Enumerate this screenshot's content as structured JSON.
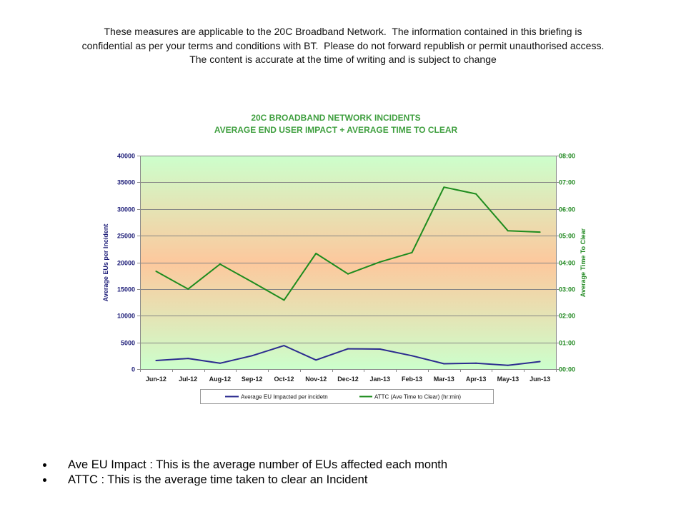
{
  "disclaimer": [
    "These measures are applicable to the 20C Broadband Network.  The information contained in this briefing is",
    "confidential as per your terms and conditions with BT.  Please do not forward republish or permit unauthorised access.",
    "The content is accurate at the time of writing and is subject to change"
  ],
  "notes": [
    "Ave EU Impact : This is the average number of EUs affected each month",
    "ATTC : This is the average time taken to clear an Incident"
  ],
  "chart_data": {
    "type": "line",
    "title": "20C BROADBAND NETWORK INCIDENTS",
    "subtitle": "AVERAGE END USER IMPACT + AVERAGE TIME TO CLEAR",
    "ylabel": "Average EUs per Incident",
    "y2label": "Average Time To Clear",
    "categories": [
      "Jun-12",
      "Jul-12",
      "Aug-12",
      "Sep-12",
      "Oct-12",
      "Nov-12",
      "Dec-12",
      "Jan-13",
      "Feb-13",
      "Mar-13",
      "Apr-13",
      "May-13",
      "Jun-13"
    ],
    "ylim": [
      0,
      40000
    ],
    "y_ticks": [
      0,
      5000,
      10000,
      15000,
      20000,
      25000,
      30000,
      35000,
      40000
    ],
    "y2lim": [
      "00:00",
      "08:00"
    ],
    "y2_ticks": [
      "00:00",
      "01:00",
      "02:00",
      "03:00",
      "04:00",
      "05:00",
      "06:00",
      "07:00",
      "08:00"
    ],
    "grid": true,
    "legend": "bottom",
    "series": [
      {
        "name": "Average EU Impacted per incidetn",
        "axis": "left",
        "color": "#2b2b8f",
        "values": [
          1600,
          2000,
          1100,
          2500,
          4400,
          1700,
          3800,
          3750,
          2500,
          1000,
          1100,
          700,
          1400
        ]
      },
      {
        "name": "ATTC (Ave Time to Clear) (hr:min)",
        "axis": "right",
        "color": "#1e8c1e",
        "values": [
          "03:40",
          "03:00",
          "03:56",
          "03:16",
          "02:35",
          "04:20",
          "03:34",
          "04:01",
          "04:22",
          "06:49",
          "06:34",
          "05:11",
          "05:08"
        ]
      }
    ]
  }
}
